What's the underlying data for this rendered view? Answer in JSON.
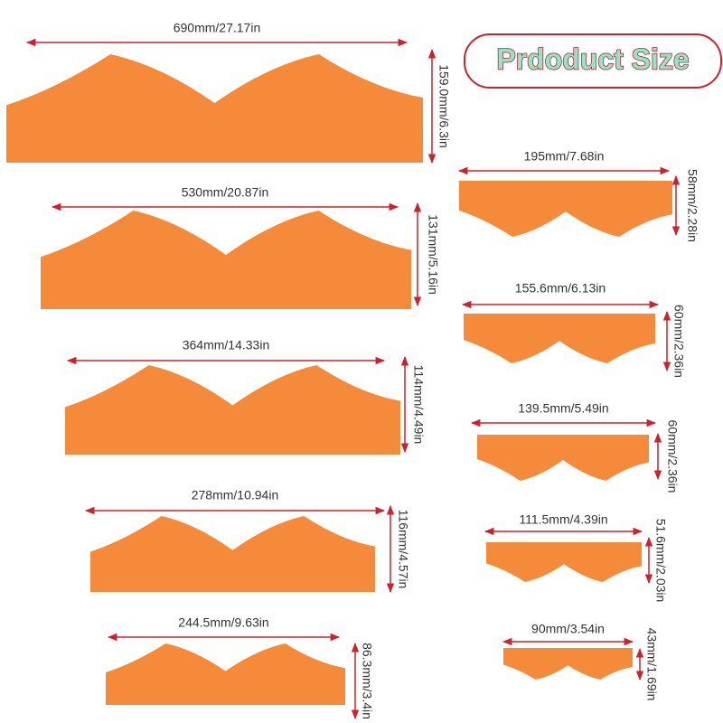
{
  "title": "Prdoduct Size",
  "pieces": [
    {
      "width_label": "690mm/27.17in",
      "height_label": "159.0mm/6.3in"
    },
    {
      "width_label": "530mm/20.87in",
      "height_label": "131mm/5.16in"
    },
    {
      "width_label": "364mm/14.33in",
      "height_label": "114mm/4.49in"
    },
    {
      "width_label": "278mm/10.94in",
      "height_label": "116mm/4.57in"
    },
    {
      "width_label": "244.5mm/9.63in",
      "height_label": "86.3mm/3.4in"
    },
    {
      "width_label": "195mm/7.68in",
      "height_label": "58mm/2.28in"
    },
    {
      "width_label": "155.6mm/6.13in",
      "height_label": "60mm/2.36in"
    },
    {
      "width_label": "139.5mm/5.49in",
      "height_label": "60mm/2.36in"
    },
    {
      "width_label": "111.5mm/4.39in",
      "height_label": "51.6mm/2.03in"
    },
    {
      "width_label": "90mm/3.54in",
      "height_label": "43mm/1.69in"
    }
  ]
}
